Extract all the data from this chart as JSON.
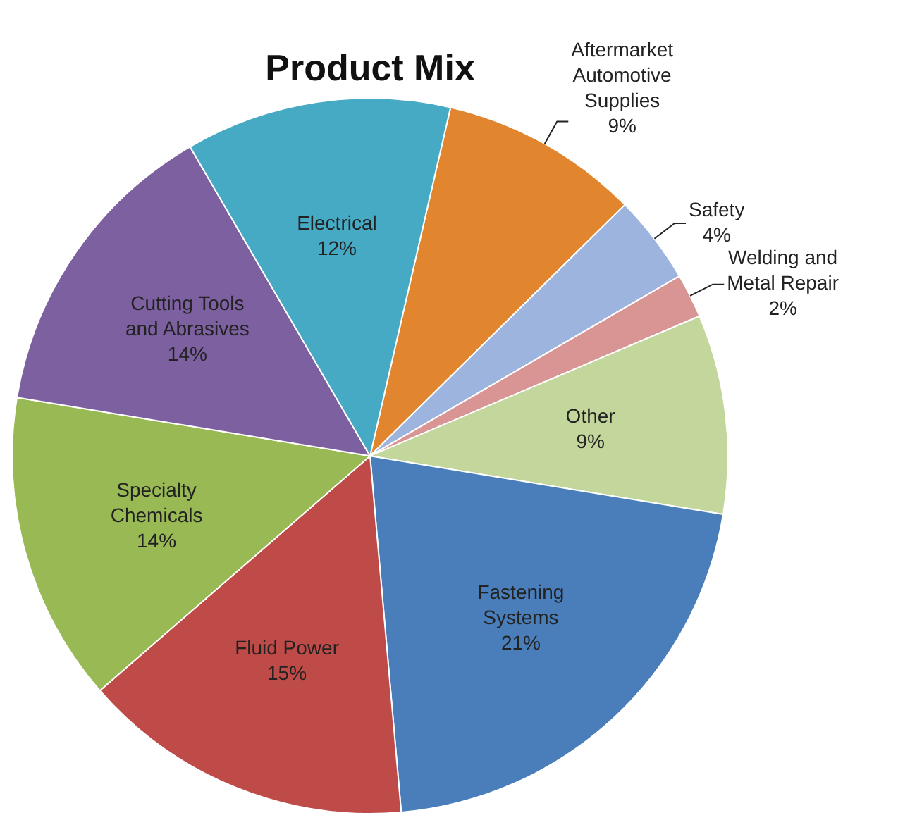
{
  "chart_data": {
    "type": "pie",
    "title": "Product Mix",
    "categories": [
      "Aftermarket Automotive Supplies",
      "Safety",
      "Welding and Metal Repair",
      "Other",
      "Fastening Systems",
      "Fluid Power",
      "Specialty Chemicals",
      "Cutting Tools and Abrasives",
      "Electrical"
    ],
    "values": [
      9,
      4,
      2,
      9,
      21,
      15,
      14,
      14,
      12
    ],
    "value_labels": [
      "9%",
      "4%",
      "2%",
      "9%",
      "21%",
      "15%",
      "14%",
      "14%",
      "12%"
    ],
    "colors": [
      "#e2852f",
      "#9db5de",
      "#d99594",
      "#c3d69b",
      "#4a7ebb",
      "#be4b48",
      "#98b954",
      "#7d60a0",
      "#46aac5"
    ],
    "legend": false
  }
}
